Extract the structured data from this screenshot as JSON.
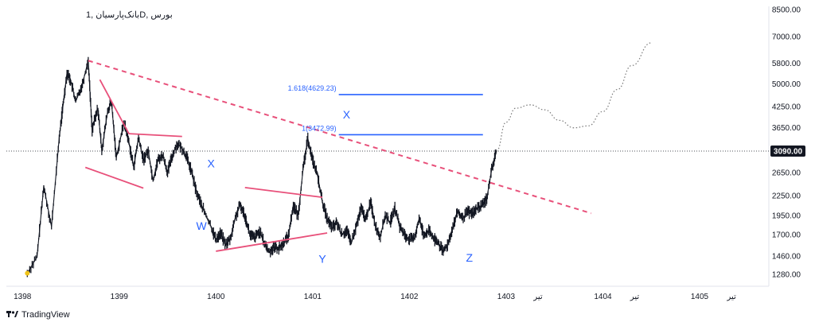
{
  "header": {
    "symbol_title": "بورس ,Dبانک‌پارسیان ,1"
  },
  "watermark": {
    "label": "TradingView"
  },
  "colors": {
    "candle": "#131722",
    "trendline": "#e8507a",
    "pattern": "#e8507a",
    "fib": "#2962ff",
    "wave_label": "#2962ff",
    "projection": "#7a7a7a",
    "marker": "#f0c419",
    "price_badge": "#131722"
  },
  "chart_data": {
    "type": "line",
    "scale": "log",
    "ylim": [
      1230,
      8600
    ],
    "xlim": [
      1397.85,
      1405.65
    ],
    "y_ticks": [
      8500,
      7000,
      5800,
      5000,
      4250,
      3650,
      3090,
      2650,
      2250,
      1950,
      1700,
      1460,
      1280
    ],
    "y_tick_labels": [
      "8500.00",
      "7000.00",
      "5800.00",
      "5000.00",
      "4250.00",
      "3650.00",
      "3090.00",
      "2650.00",
      "2250.00",
      "1950.00",
      "1700.00",
      "1460.00",
      "1280.00"
    ],
    "current_price": 3090,
    "current_price_label": "3090.00",
    "x_ticks": [
      {
        "x": 1398,
        "label": "1398"
      },
      {
        "x": 1399,
        "label": "1399"
      },
      {
        "x": 1400,
        "label": "1400"
      },
      {
        "x": 1401,
        "label": "1401"
      },
      {
        "x": 1402,
        "label": "1402"
      },
      {
        "x": 1403,
        "label": "1403"
      },
      {
        "x": 1403.33,
        "label": "تیر"
      },
      {
        "x": 1404,
        "label": "1404"
      },
      {
        "x": 1404.33,
        "label": "تیر"
      },
      {
        "x": 1405,
        "label": "1405"
      },
      {
        "x": 1405.33,
        "label": "تیر"
      }
    ],
    "series": [
      {
        "kind": "price",
        "x": [
          1398.05,
          1398.15,
          1398.22,
          1398.3,
          1398.38,
          1398.42,
          1398.46,
          1398.5,
          1398.55,
          1398.62,
          1398.68,
          1398.72,
          1398.78,
          1398.82,
          1398.88,
          1398.92,
          1398.97,
          1399.05,
          1399.1,
          1399.15,
          1399.2,
          1399.25,
          1399.3,
          1399.35,
          1399.4,
          1399.45,
          1399.5,
          1399.55,
          1399.6,
          1399.65,
          1399.7,
          1399.75,
          1399.8,
          1399.88,
          1399.95,
          1400.0,
          1400.05,
          1400.1,
          1400.15,
          1400.2,
          1400.25,
          1400.3,
          1400.35,
          1400.4,
          1400.45,
          1400.5,
          1400.55,
          1400.6,
          1400.65,
          1400.7,
          1400.75,
          1400.8,
          1400.85,
          1400.9,
          1400.95,
          1401.0,
          1401.05,
          1401.1,
          1401.15,
          1401.2,
          1401.25,
          1401.3,
          1401.35,
          1401.4,
          1401.45,
          1401.5,
          1401.55,
          1401.6,
          1401.65,
          1401.7,
          1401.75,
          1401.8,
          1401.85,
          1401.9,
          1401.95,
          1402.0,
          1402.05,
          1402.1,
          1402.15,
          1402.2,
          1402.25,
          1402.3,
          1402.35,
          1402.4,
          1402.45,
          1402.5,
          1402.55,
          1402.6,
          1402.65,
          1402.7,
          1402.75,
          1402.8,
          1402.85,
          1402.9
        ],
        "y": [
          1290,
          1450,
          2400,
          1800,
          3400,
          4300,
          5400,
          5100,
          4400,
          5000,
          5900,
          3600,
          4200,
          3100,
          4100,
          4400,
          2950,
          3800,
          3300,
          2750,
          3400,
          2900,
          3100,
          2500,
          2900,
          3000,
          2650,
          3000,
          3250,
          3150,
          2950,
          2650,
          2300,
          2000,
          1800,
          1640,
          1720,
          1580,
          1650,
          1920,
          2100,
          1950,
          1700,
          1660,
          1740,
          1600,
          1500,
          1560,
          1540,
          1600,
          1690,
          2100,
          1940,
          2700,
          3380,
          2900,
          2600,
          2150,
          1900,
          1780,
          1850,
          1700,
          1750,
          1600,
          1800,
          2050,
          1900,
          2150,
          1800,
          1680,
          1950,
          1850,
          2050,
          1800,
          1700,
          1640,
          1650,
          1900,
          1700,
          1750,
          1650,
          1600,
          1500,
          1600,
          1800,
          2000,
          1900,
          2000,
          1980,
          2050,
          2100,
          2200,
          2700,
          3090
        ]
      },
      {
        "kind": "projection",
        "x": [
          1402.9,
          1403.0,
          1403.1,
          1403.25,
          1403.4,
          1403.55,
          1403.7,
          1403.85,
          1404.0,
          1404.15,
          1404.3,
          1404.5
        ],
        "y": [
          3090,
          3800,
          4200,
          4300,
          4150,
          3850,
          3650,
          3700,
          4100,
          4800,
          5700,
          6700
        ]
      }
    ],
    "fib_levels": [
      {
        "label": "1.618(4629.23)",
        "value": 4629.23
      },
      {
        "label": "1(3472.99)",
        "value": 3472.99
      }
    ],
    "trendline": {
      "from": {
        "x": 1398.68,
        "y": 5900
      },
      "to": {
        "x": 1403.88,
        "y": 1980
      }
    },
    "wave_labels": [
      {
        "text": "W",
        "x": 1399.85,
        "y": 1760
      },
      {
        "text": "X",
        "x": 1399.95,
        "y": 2750
      },
      {
        "text": "Y",
        "x": 1401.1,
        "y": 1390
      },
      {
        "text": "X",
        "x": 1401.35,
        "y": 3900
      },
      {
        "text": "Z",
        "x": 1402.62,
        "y": 1400
      }
    ],
    "patterns": [
      {
        "name": "triangle-1",
        "lines": [
          {
            "from": {
              "x": 1398.8,
              "y": 5150
            },
            "to": {
              "x": 1399.1,
              "y": 3500
            }
          },
          {
            "from": {
              "x": 1399.1,
              "y": 3500
            },
            "to": {
              "x": 1399.65,
              "y": 3430
            }
          },
          {
            "from": {
              "x": 1398.65,
              "y": 2750
            },
            "to": {
              "x": 1399.25,
              "y": 2370
            }
          }
        ]
      },
      {
        "name": "triangle-2",
        "lines": [
          {
            "from": {
              "x": 1400.3,
              "y": 2380
            },
            "to": {
              "x": 1401.1,
              "y": 2220
            }
          },
          {
            "from": {
              "x": 1400.0,
              "y": 1510
            },
            "to": {
              "x": 1401.15,
              "y": 1720
            }
          }
        ]
      }
    ],
    "marker": {
      "x": 1398.05,
      "y": 1290
    }
  }
}
